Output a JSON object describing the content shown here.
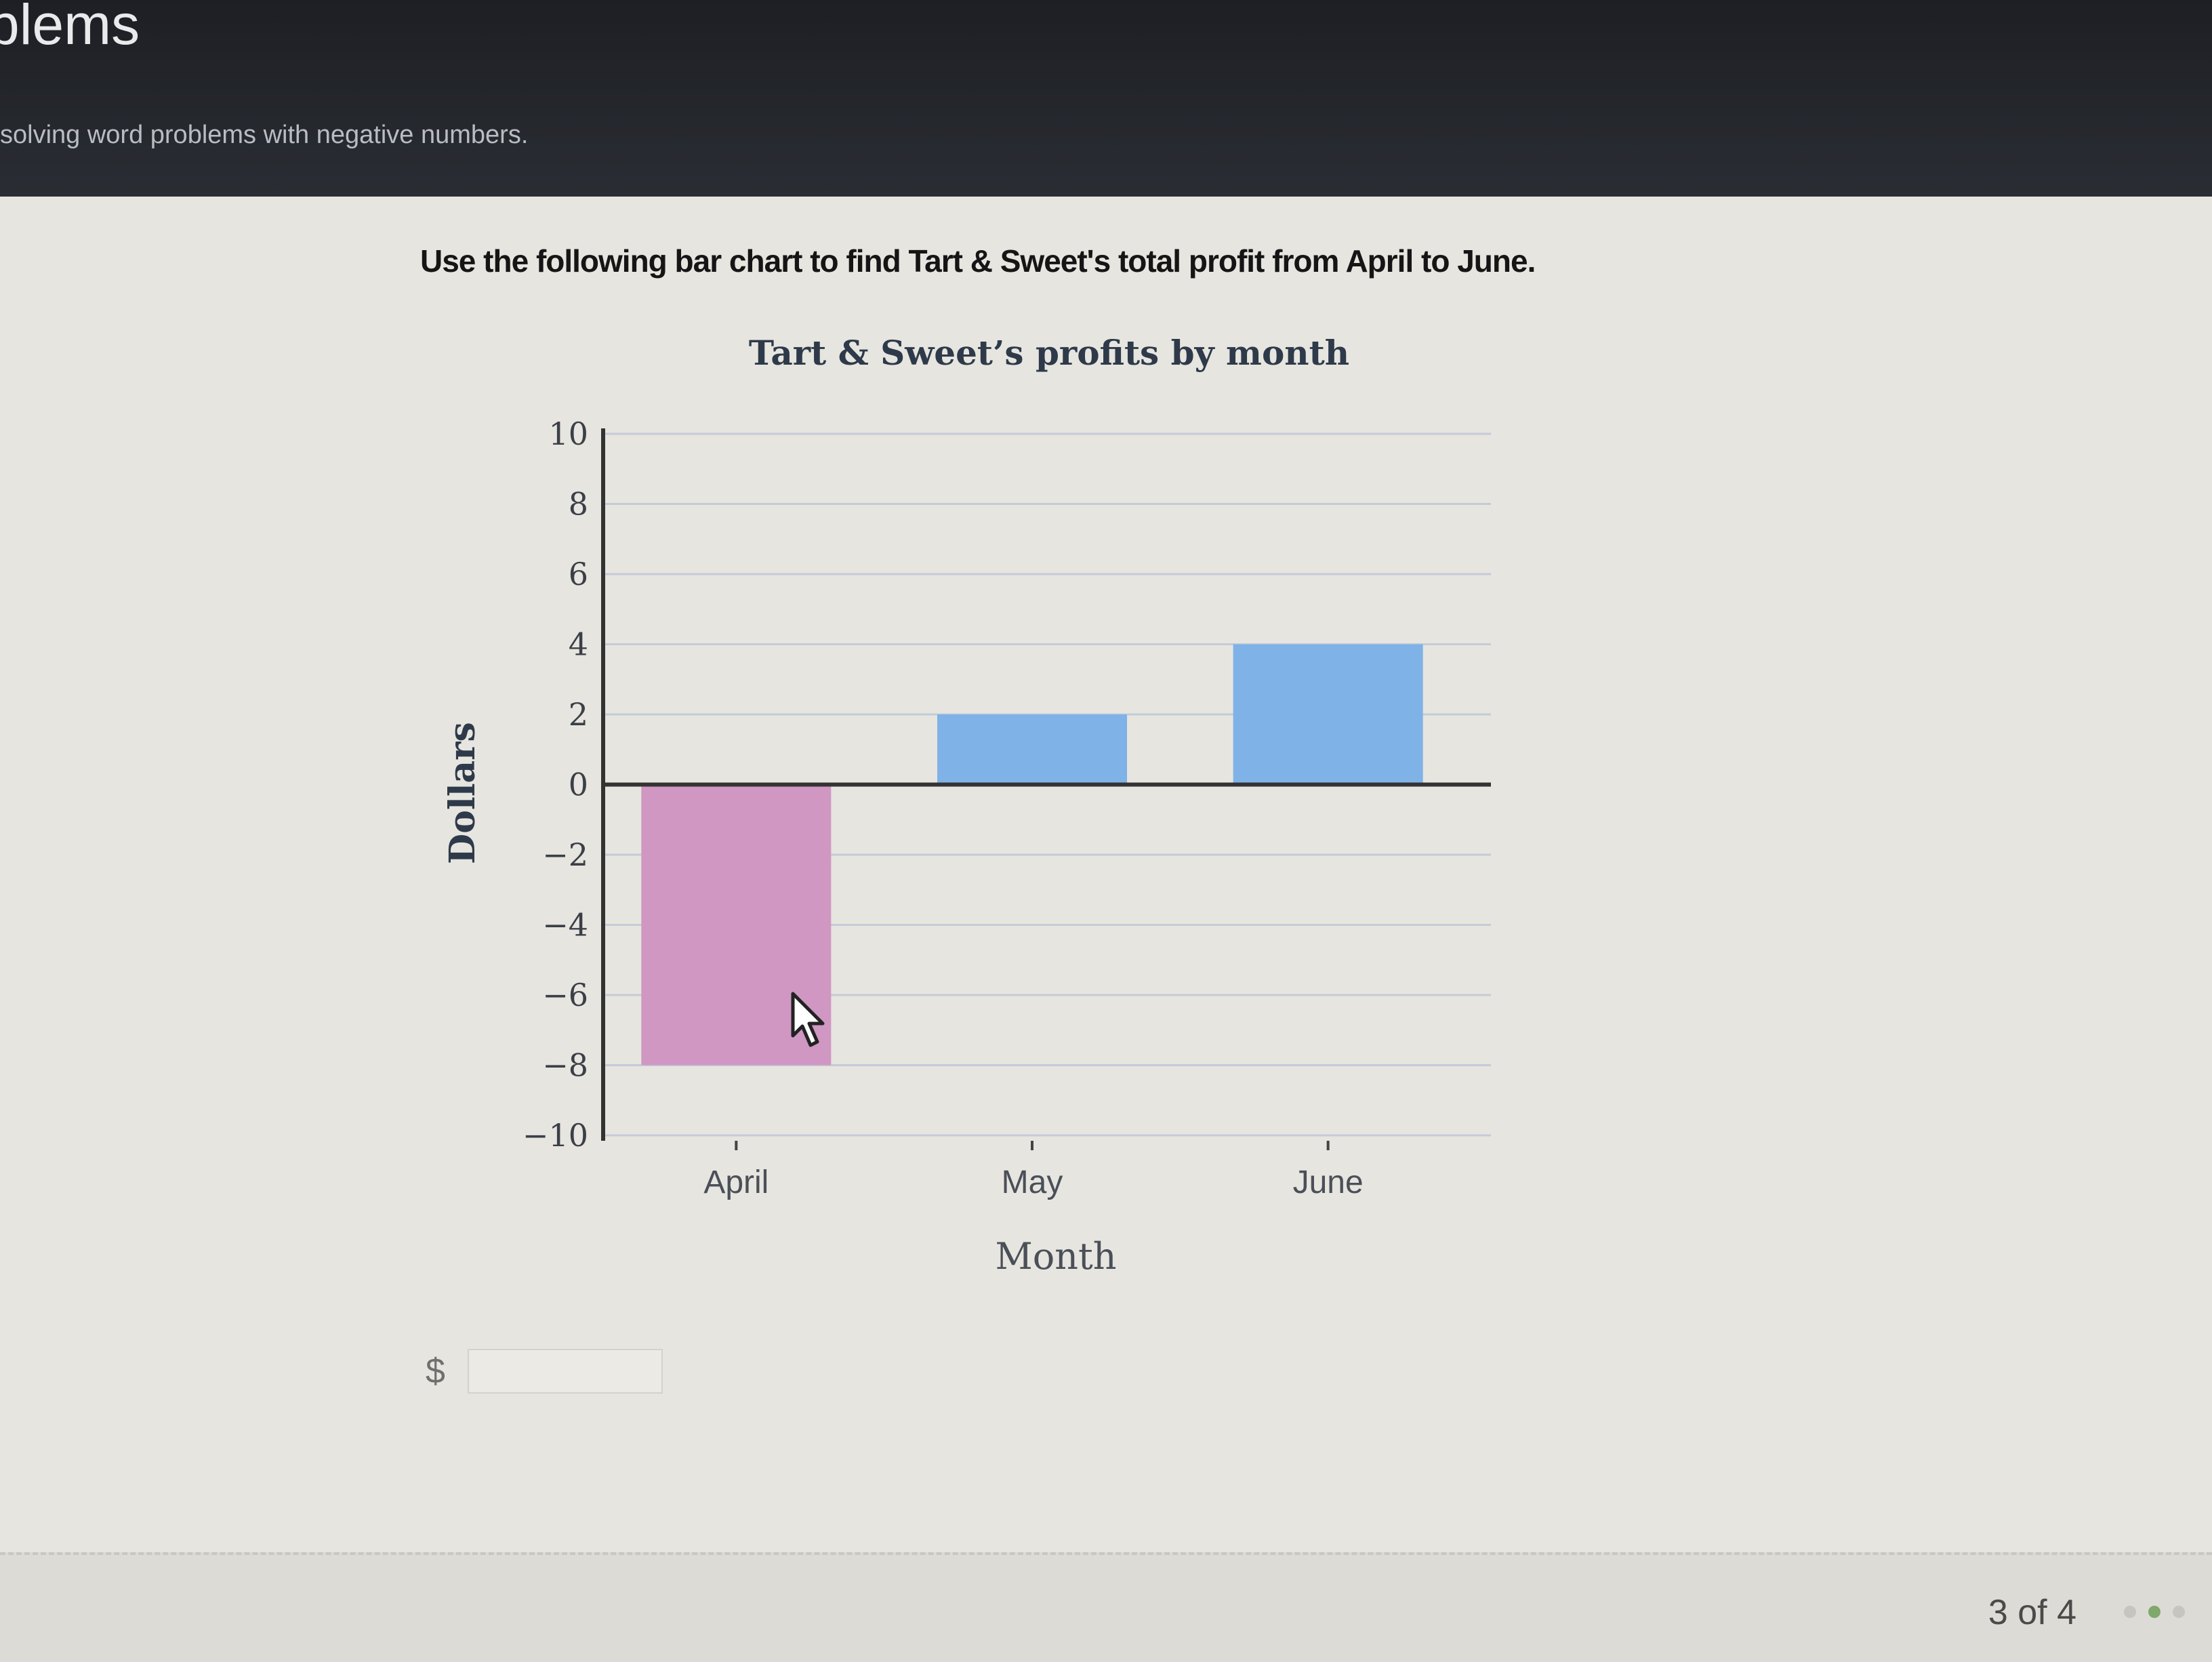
{
  "header": {
    "title": "blems",
    "subtitle": "solving word problems with negative numbers."
  },
  "question": "Use the following bar chart to find Tart & Sweet's total profit from April to June.",
  "answer": {
    "prefix": "$",
    "value": ""
  },
  "footer": {
    "pager": "3 of 4"
  },
  "colors": {
    "negative_bar": "#cf97c2",
    "positive_bar": "#7fb2e6",
    "grid": "#c4cbd8",
    "axis": "#333333"
  },
  "chart_data": {
    "type": "bar",
    "title": "Tart & Sweet’s profits by month",
    "xlabel": "Month",
    "ylabel": "Dollars",
    "categories": [
      "April",
      "May",
      "June"
    ],
    "values": [
      -8,
      2,
      4
    ],
    "ylim": [
      -10,
      10
    ],
    "yticks": [
      10,
      8,
      6,
      4,
      2,
      0,
      -2,
      -4,
      -6,
      -8,
      -10
    ],
    "ytick_labels": [
      "10",
      "8",
      "6",
      "4",
      "2",
      "0",
      "−2",
      "−4",
      "−6",
      "−8",
      "−10"
    ],
    "grid": true
  }
}
